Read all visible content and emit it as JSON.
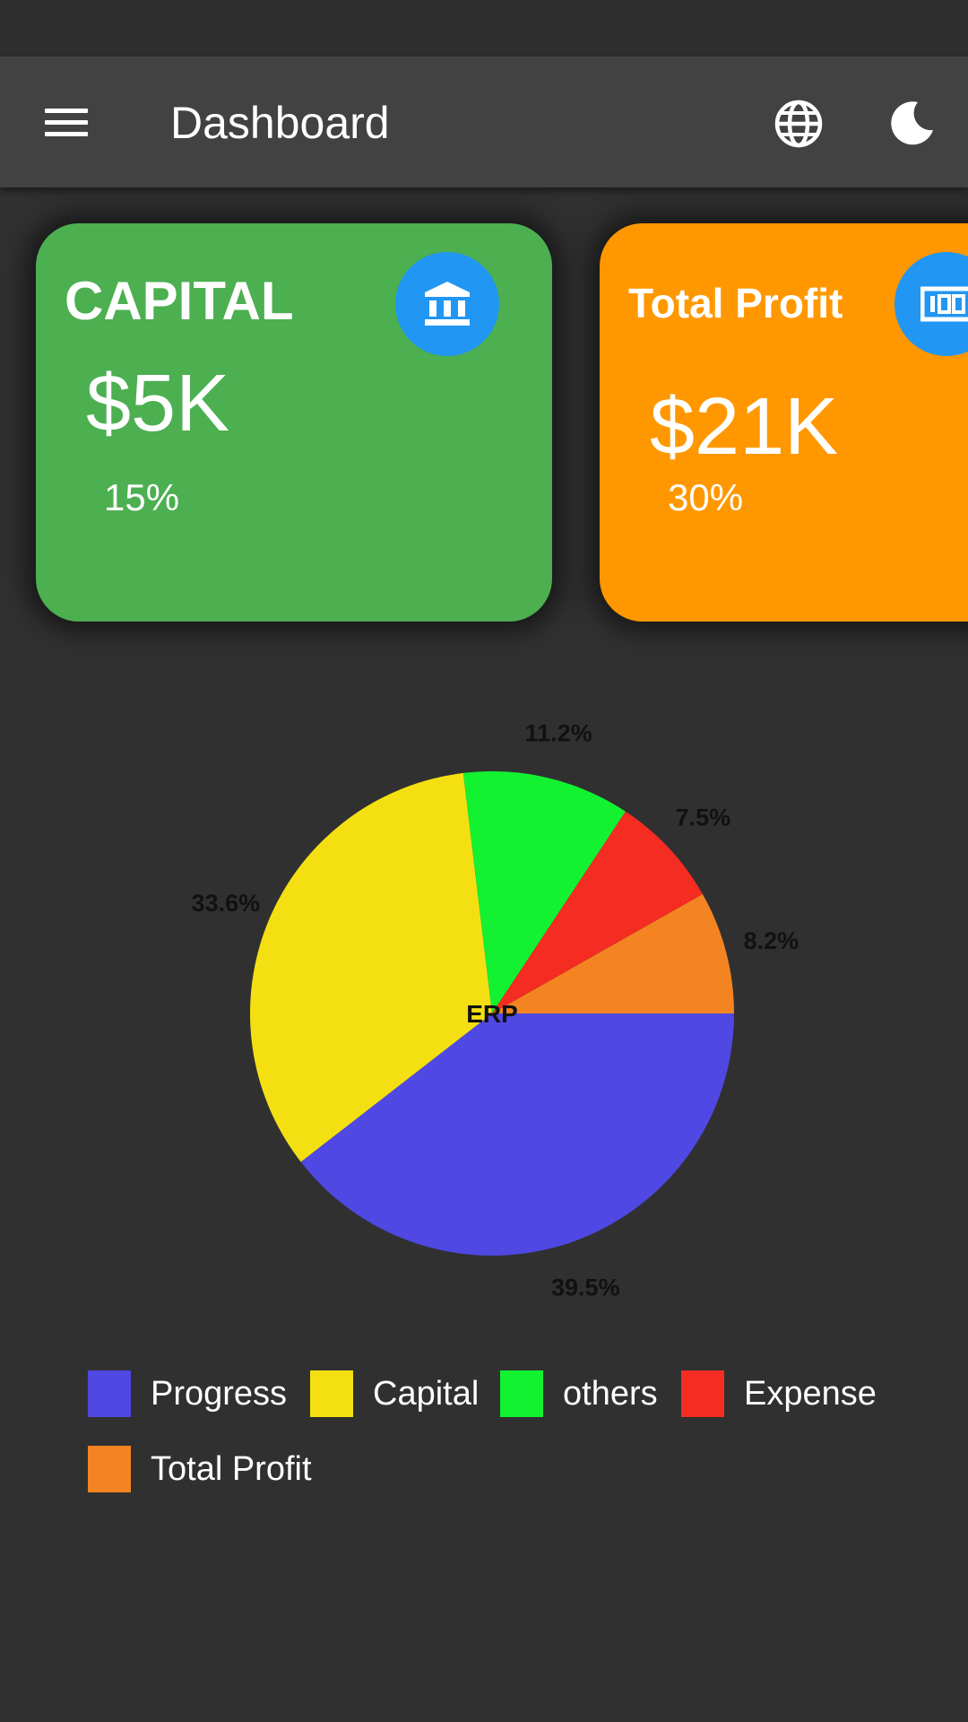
{
  "app_bar": {
    "title": "Dashboard",
    "menu_icon": "hamburger-menu-icon",
    "language_icon": "globe-icon",
    "theme_icon": "moon-icon"
  },
  "cards": [
    {
      "title": "CAPITAL",
      "value": "$5K",
      "percent": "15%",
      "color": "#4caf50",
      "icon": "bank-icon",
      "icon_color": "#2196f3"
    },
    {
      "title": "Total Profit",
      "value": "$21K",
      "percent": "30%",
      "color": "#ff9800",
      "icon": "counter-icon",
      "icon_color": "#2196f3"
    }
  ],
  "chart_data": {
    "type": "pie",
    "title": "",
    "center_label": "ERP",
    "series": [
      {
        "name": "Progress",
        "value": 39.5,
        "label": "39.5%",
        "color": "#4f48e2"
      },
      {
        "name": "Capital",
        "value": 33.6,
        "label": "33.6%",
        "color": "#f4e012"
      },
      {
        "name": "others",
        "value": 11.2,
        "label": "11.2%",
        "color": "#13f231"
      },
      {
        "name": "Expense",
        "value": 7.5,
        "label": "7.5%",
        "color": "#f42c21"
      },
      {
        "name": "Total Profit",
        "value": 8.2,
        "label": "8.2%",
        "color": "#f48421"
      }
    ],
    "legend_position": "bottom"
  }
}
